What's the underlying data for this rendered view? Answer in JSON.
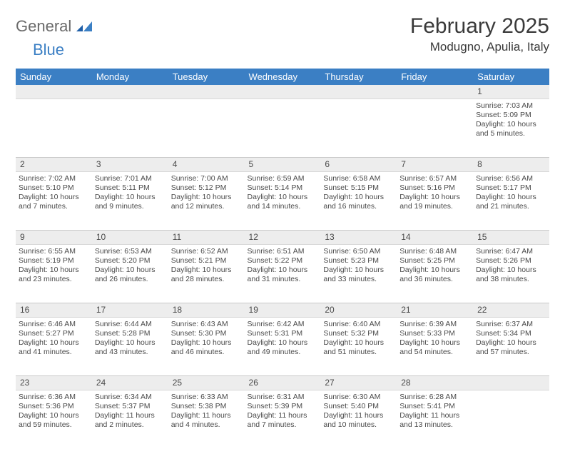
{
  "logo": {
    "word1": "General",
    "word2": "Blue"
  },
  "header": {
    "month_title": "February 2025",
    "location": "Modugno, Apulia, Italy"
  },
  "colors": {
    "header_bg": "#3b7fc4",
    "header_text": "#ffffff",
    "daynum_bg": "#ededed",
    "border": "#d8d8d8",
    "text": "#4a4a4a",
    "logo_gray": "#6a6a6a",
    "logo_blue": "#3b7fc4"
  },
  "weekdays": [
    "Sunday",
    "Monday",
    "Tuesday",
    "Wednesday",
    "Thursday",
    "Friday",
    "Saturday"
  ],
  "weeks": [
    {
      "nums": [
        "",
        "",
        "",
        "",
        "",
        "",
        "1"
      ],
      "cells": [
        null,
        null,
        null,
        null,
        null,
        null,
        {
          "sunrise": "Sunrise: 7:03 AM",
          "sunset": "Sunset: 5:09 PM",
          "day1": "Daylight: 10 hours",
          "day2": "and 5 minutes."
        }
      ]
    },
    {
      "nums": [
        "2",
        "3",
        "4",
        "5",
        "6",
        "7",
        "8"
      ],
      "cells": [
        {
          "sunrise": "Sunrise: 7:02 AM",
          "sunset": "Sunset: 5:10 PM",
          "day1": "Daylight: 10 hours",
          "day2": "and 7 minutes."
        },
        {
          "sunrise": "Sunrise: 7:01 AM",
          "sunset": "Sunset: 5:11 PM",
          "day1": "Daylight: 10 hours",
          "day2": "and 9 minutes."
        },
        {
          "sunrise": "Sunrise: 7:00 AM",
          "sunset": "Sunset: 5:12 PM",
          "day1": "Daylight: 10 hours",
          "day2": "and 12 minutes."
        },
        {
          "sunrise": "Sunrise: 6:59 AM",
          "sunset": "Sunset: 5:14 PM",
          "day1": "Daylight: 10 hours",
          "day2": "and 14 minutes."
        },
        {
          "sunrise": "Sunrise: 6:58 AM",
          "sunset": "Sunset: 5:15 PM",
          "day1": "Daylight: 10 hours",
          "day2": "and 16 minutes."
        },
        {
          "sunrise": "Sunrise: 6:57 AM",
          "sunset": "Sunset: 5:16 PM",
          "day1": "Daylight: 10 hours",
          "day2": "and 19 minutes."
        },
        {
          "sunrise": "Sunrise: 6:56 AM",
          "sunset": "Sunset: 5:17 PM",
          "day1": "Daylight: 10 hours",
          "day2": "and 21 minutes."
        }
      ]
    },
    {
      "nums": [
        "9",
        "10",
        "11",
        "12",
        "13",
        "14",
        "15"
      ],
      "cells": [
        {
          "sunrise": "Sunrise: 6:55 AM",
          "sunset": "Sunset: 5:19 PM",
          "day1": "Daylight: 10 hours",
          "day2": "and 23 minutes."
        },
        {
          "sunrise": "Sunrise: 6:53 AM",
          "sunset": "Sunset: 5:20 PM",
          "day1": "Daylight: 10 hours",
          "day2": "and 26 minutes."
        },
        {
          "sunrise": "Sunrise: 6:52 AM",
          "sunset": "Sunset: 5:21 PM",
          "day1": "Daylight: 10 hours",
          "day2": "and 28 minutes."
        },
        {
          "sunrise": "Sunrise: 6:51 AM",
          "sunset": "Sunset: 5:22 PM",
          "day1": "Daylight: 10 hours",
          "day2": "and 31 minutes."
        },
        {
          "sunrise": "Sunrise: 6:50 AM",
          "sunset": "Sunset: 5:23 PM",
          "day1": "Daylight: 10 hours",
          "day2": "and 33 minutes."
        },
        {
          "sunrise": "Sunrise: 6:48 AM",
          "sunset": "Sunset: 5:25 PM",
          "day1": "Daylight: 10 hours",
          "day2": "and 36 minutes."
        },
        {
          "sunrise": "Sunrise: 6:47 AM",
          "sunset": "Sunset: 5:26 PM",
          "day1": "Daylight: 10 hours",
          "day2": "and 38 minutes."
        }
      ]
    },
    {
      "nums": [
        "16",
        "17",
        "18",
        "19",
        "20",
        "21",
        "22"
      ],
      "cells": [
        {
          "sunrise": "Sunrise: 6:46 AM",
          "sunset": "Sunset: 5:27 PM",
          "day1": "Daylight: 10 hours",
          "day2": "and 41 minutes."
        },
        {
          "sunrise": "Sunrise: 6:44 AM",
          "sunset": "Sunset: 5:28 PM",
          "day1": "Daylight: 10 hours",
          "day2": "and 43 minutes."
        },
        {
          "sunrise": "Sunrise: 6:43 AM",
          "sunset": "Sunset: 5:30 PM",
          "day1": "Daylight: 10 hours",
          "day2": "and 46 minutes."
        },
        {
          "sunrise": "Sunrise: 6:42 AM",
          "sunset": "Sunset: 5:31 PM",
          "day1": "Daylight: 10 hours",
          "day2": "and 49 minutes."
        },
        {
          "sunrise": "Sunrise: 6:40 AM",
          "sunset": "Sunset: 5:32 PM",
          "day1": "Daylight: 10 hours",
          "day2": "and 51 minutes."
        },
        {
          "sunrise": "Sunrise: 6:39 AM",
          "sunset": "Sunset: 5:33 PM",
          "day1": "Daylight: 10 hours",
          "day2": "and 54 minutes."
        },
        {
          "sunrise": "Sunrise: 6:37 AM",
          "sunset": "Sunset: 5:34 PM",
          "day1": "Daylight: 10 hours",
          "day2": "and 57 minutes."
        }
      ]
    },
    {
      "nums": [
        "23",
        "24",
        "25",
        "26",
        "27",
        "28",
        ""
      ],
      "cells": [
        {
          "sunrise": "Sunrise: 6:36 AM",
          "sunset": "Sunset: 5:36 PM",
          "day1": "Daylight: 10 hours",
          "day2": "and 59 minutes."
        },
        {
          "sunrise": "Sunrise: 6:34 AM",
          "sunset": "Sunset: 5:37 PM",
          "day1": "Daylight: 11 hours",
          "day2": "and 2 minutes."
        },
        {
          "sunrise": "Sunrise: 6:33 AM",
          "sunset": "Sunset: 5:38 PM",
          "day1": "Daylight: 11 hours",
          "day2": "and 4 minutes."
        },
        {
          "sunrise": "Sunrise: 6:31 AM",
          "sunset": "Sunset: 5:39 PM",
          "day1": "Daylight: 11 hours",
          "day2": "and 7 minutes."
        },
        {
          "sunrise": "Sunrise: 6:30 AM",
          "sunset": "Sunset: 5:40 PM",
          "day1": "Daylight: 11 hours",
          "day2": "and 10 minutes."
        },
        {
          "sunrise": "Sunrise: 6:28 AM",
          "sunset": "Sunset: 5:41 PM",
          "day1": "Daylight: 11 hours",
          "day2": "and 13 minutes."
        },
        null
      ]
    }
  ]
}
